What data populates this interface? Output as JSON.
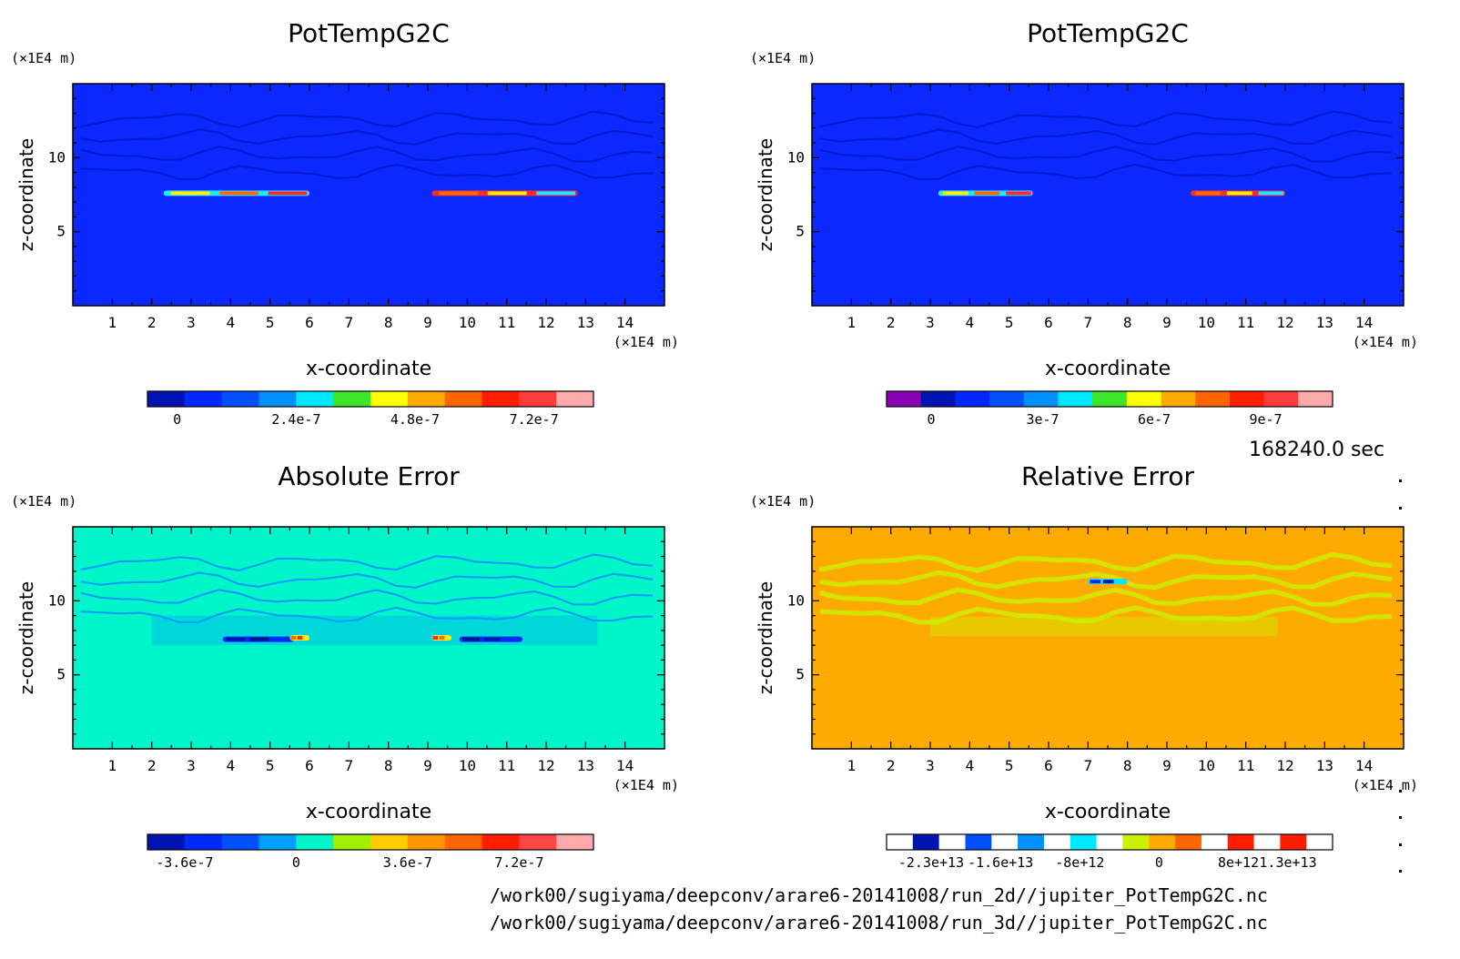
{
  "chart_data": [
    {
      "type": "heatmap",
      "title": "PotTempG2C",
      "xlabel": "x-coordinate",
      "ylabel": "z-coordinate",
      "x_unit": "(×1E4 m)",
      "y_unit": "(×1E4 m)",
      "xlim": [
        0,
        15
      ],
      "ylim": [
        0,
        15
      ],
      "xticks": [
        "1",
        "2",
        "3",
        "4",
        "5",
        "6",
        "7",
        "8",
        "9",
        "10",
        "11",
        "12",
        "13",
        "14"
      ],
      "yticks": [
        "5",
        "10"
      ],
      "background_color": "#0a28ff",
      "features": [
        {
          "x": [
            2.3,
            6.0
          ],
          "z": 7.6,
          "colors": [
            "#20e8ff",
            "#ffee00",
            "#ff6a00",
            "#ff2a2a"
          ]
        },
        {
          "x": [
            9.1,
            12.8
          ],
          "z": 7.6,
          "colors": [
            "#ff2a2a",
            "#ff6a00",
            "#ffee00",
            "#20e8ff"
          ]
        }
      ],
      "colorbar": {
        "colors": [
          "#0014b4",
          "#0028ff",
          "#0050ff",
          "#0090ff",
          "#00e8ff",
          "#3ce628",
          "#ffff00",
          "#ffaa00",
          "#ff6400",
          "#ff1e00",
          "#ff3c3c",
          "#ffaaaa"
        ],
        "tick_labels": [
          "0",
          "2.4e-7",
          "4.8e-7",
          "7.2e-7"
        ],
        "tick_values": [
          0,
          2.4e-07,
          4.8e-07,
          7.2e-07
        ],
        "range": [
          -6e-08,
          8.4e-07
        ]
      }
    },
    {
      "type": "heatmap",
      "title": "PotTempG2C",
      "xlabel": "x-coordinate",
      "ylabel": "z-coordinate",
      "x_unit": "(×1E4 m)",
      "y_unit": "(×1E4 m)",
      "xlim": [
        0,
        15
      ],
      "ylim": [
        0,
        15
      ],
      "xticks": [
        "1",
        "2",
        "3",
        "4",
        "5",
        "6",
        "7",
        "8",
        "9",
        "10",
        "11",
        "12",
        "13",
        "14"
      ],
      "yticks": [
        "5",
        "10"
      ],
      "background_color": "#0a28ff",
      "features": [
        {
          "x": [
            3.2,
            5.6
          ],
          "z": 7.6,
          "colors": [
            "#20e8ff",
            "#ffee00",
            "#ff6a00",
            "#ff2a2a"
          ]
        },
        {
          "x": [
            9.6,
            12.0
          ],
          "z": 7.6,
          "colors": [
            "#ff2a2a",
            "#ff6a00",
            "#ffee00",
            "#20e8ff"
          ]
        }
      ],
      "colorbar": {
        "colors": [
          "#8c00b4",
          "#0014b4",
          "#0028ff",
          "#0050ff",
          "#0090ff",
          "#00e8ff",
          "#3ce628",
          "#ffff00",
          "#ffaa00",
          "#ff6400",
          "#ff1e00",
          "#ff3c3c",
          "#ffaaaa"
        ],
        "tick_labels": [
          "0",
          "3e-7",
          "6e-7",
          "9e-7"
        ],
        "tick_values": [
          0,
          3e-07,
          6e-07,
          9e-07
        ],
        "range": [
          -1.2e-07,
          1.08e-06
        ]
      }
    },
    {
      "type": "heatmap",
      "title": "Absolute Error",
      "xlabel": "x-coordinate",
      "ylabel": "z-coordinate",
      "x_unit": "(×1E4 m)",
      "y_unit": "(×1E4 m)",
      "xlim": [
        0,
        15
      ],
      "ylim": [
        0,
        15
      ],
      "xticks": [
        "1",
        "2",
        "3",
        "4",
        "5",
        "6",
        "7",
        "8",
        "9",
        "10",
        "11",
        "12",
        "13",
        "14"
      ],
      "yticks": [
        "5",
        "10"
      ],
      "background_color": "#00f5c8",
      "features": [
        {
          "x": [
            3.8,
            5.6
          ],
          "z": 7.4,
          "colors": [
            "#0a28ff",
            "#0014b4",
            "#00148c",
            "#0028ff"
          ]
        },
        {
          "x": [
            9.8,
            11.4
          ],
          "z": 7.4,
          "colors": [
            "#0028ff",
            "#00148c",
            "#0014b4",
            "#0a28ff"
          ]
        },
        {
          "x": [
            5.5,
            6.0
          ],
          "z": 7.5,
          "colors": [
            "#ffee00",
            "#ff6a00",
            "#ff2a2a",
            "#ffee00"
          ]
        },
        {
          "x": [
            9.1,
            9.6
          ],
          "z": 7.5,
          "colors": [
            "#ffee00",
            "#ff2a2a",
            "#ff6a00",
            "#ffee00"
          ]
        }
      ],
      "colorbar": {
        "colors": [
          "#0014b4",
          "#0028ff",
          "#0050ff",
          "#00a0ff",
          "#00f5c8",
          "#a0f000",
          "#ffcc00",
          "#ff9600",
          "#ff6400",
          "#ff1e00",
          "#ff4646",
          "#ffaaaa"
        ],
        "tick_labels": [
          "-3.6e-7",
          "0",
          "3.6e-7",
          "7.2e-7"
        ],
        "tick_values": [
          -3.6e-07,
          0,
          3.6e-07,
          7.2e-07
        ],
        "range": [
          -4.8e-07,
          9.6e-07
        ]
      }
    },
    {
      "type": "heatmap",
      "title": "Relative Error",
      "xlabel": "x-coordinate",
      "ylabel": "z-coordinate",
      "x_unit": "(×1E4 m)",
      "y_unit": "(×1E4 m)",
      "xlim": [
        0,
        15
      ],
      "ylim": [
        0,
        15
      ],
      "xticks": [
        "1",
        "2",
        "3",
        "4",
        "5",
        "6",
        "7",
        "8",
        "9",
        "10",
        "11",
        "12",
        "13",
        "14"
      ],
      "yticks": [
        "5",
        "10"
      ],
      "background_color": "#ffaa00",
      "features": [
        {
          "x": [
            7.0,
            8.0
          ],
          "z": 11.3,
          "colors": [
            "#00e8ff",
            "#0028ff",
            "#0014b4",
            "#00e8ff"
          ]
        }
      ],
      "colorbar": {
        "style": "outline",
        "colors": [
          "#ffffff",
          "#0014b4",
          "#ffffff",
          "#0050ff",
          "#ffffff",
          "#0090ff",
          "#ffffff",
          "#00e8ff",
          "#ffffff",
          "#ccf000",
          "#ffaa00",
          "#ff6400",
          "#ffffff",
          "#ff1e00",
          "#ffffff",
          "#ff1e00",
          "#ffffff"
        ],
        "tick_labels": [
          "-2.3e+13",
          "-1.6e+13",
          "-8e+12",
          "0",
          "8e+12",
          "1.3e+13"
        ],
        "tick_values": [
          -23000000000000.0,
          -16000000000000.0,
          -8000000000000.0,
          0,
          8000000000000.0,
          13000000000000.0
        ],
        "range": [
          -27500000000000.0,
          17500000000000.0
        ]
      }
    }
  ],
  "footer": {
    "time": "168240.0 sec",
    "path_2d": "/work00/sugiyama/deepconv/arare6-20141008/run_2d//jupiter_PotTempG2C.nc",
    "path_3d": "/work00/sugiyama/deepconv/arare6-20141008/run_3d//jupiter_PotTempG2C.nc"
  }
}
